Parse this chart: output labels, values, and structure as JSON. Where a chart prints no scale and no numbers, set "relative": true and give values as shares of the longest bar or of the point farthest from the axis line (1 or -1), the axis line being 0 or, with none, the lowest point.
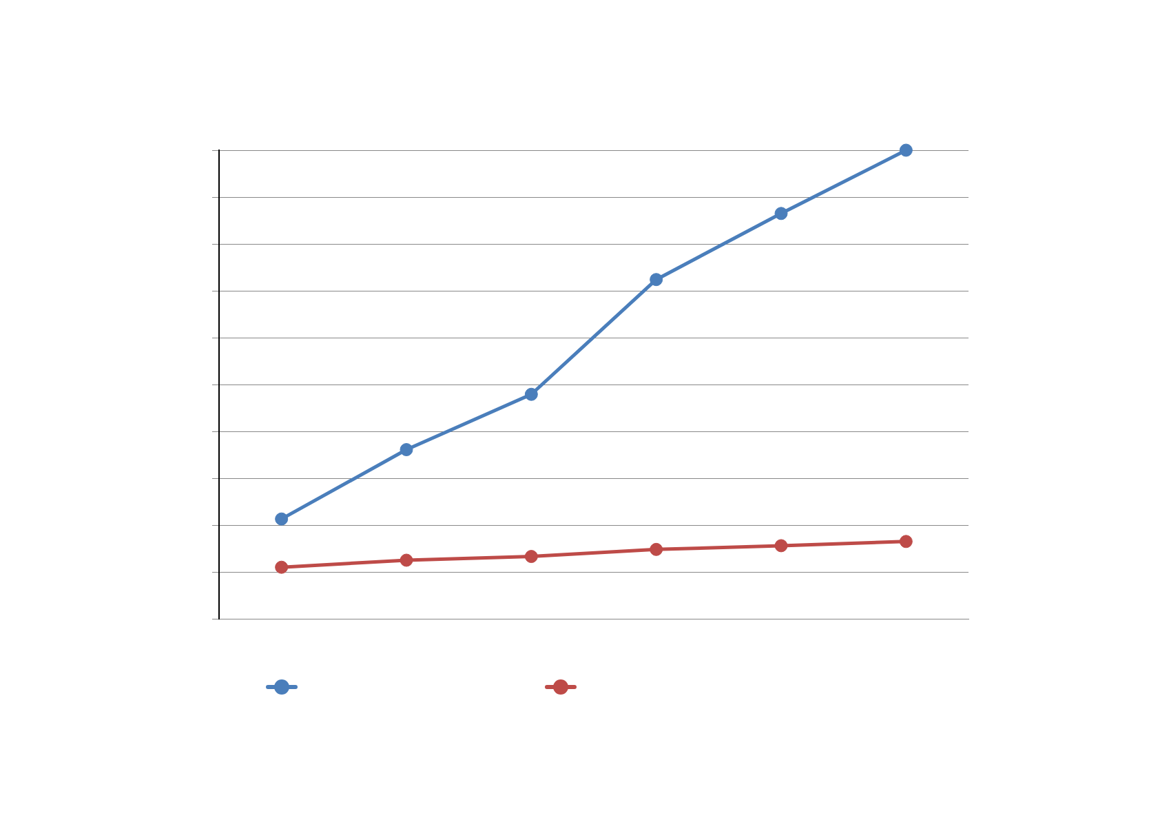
{
  "chart_data": {
    "type": "line",
    "relative": true,
    "categories": [
      null,
      null,
      null,
      null,
      null,
      null
    ],
    "series": [
      {
        "color": "#4a7ebb",
        "values": [
          0.213,
          0.361,
          0.479,
          0.724,
          0.865,
          1
        ]
      },
      {
        "color": "#be4b48",
        "values": [
          0.11,
          0.125,
          0.133,
          0.148,
          0.156,
          0.165
        ]
      }
    ],
    "grid": "y",
    "marker": "circle",
    "line_style": "solid"
  }
}
